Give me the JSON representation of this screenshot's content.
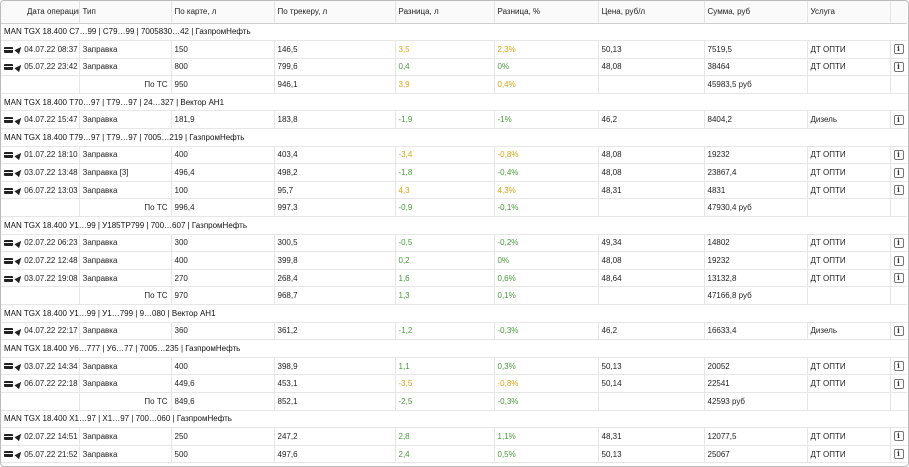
{
  "columns": [
    "Дата операции",
    "Тип",
    "По карте, л",
    "По трекеру, л",
    "Разница, л",
    "Разница, %",
    "Цена, руб/л",
    "Сумма, руб",
    "Услуга"
  ],
  "total_label": "По ТС",
  "rows": [
    {
      "kind": "group",
      "title": "MAN TGX 18.400 С7…99 | С79…99 | 7005830…42 | ГазпромНефть"
    },
    {
      "kind": "op",
      "date": "04.07.22 08:37",
      "type": "Заправка",
      "card": "150",
      "tracker": "146,5",
      "diff": "3,5",
      "diff_pct": "2,3%",
      "tone": "warn",
      "price": "50,13",
      "sum": "7519,5",
      "service": "ДТ ОПТИ",
      "info": true
    },
    {
      "kind": "op",
      "date": "05.07.22 23:42",
      "type": "Заправка",
      "card": "800",
      "tracker": "799,6",
      "diff": "0,4",
      "diff_pct": "0%",
      "tone": "pos",
      "price": "48,08",
      "sum": "38464",
      "service": "ДТ ОПТИ",
      "info": true
    },
    {
      "kind": "total",
      "card": "950",
      "tracker": "946,1",
      "diff": "3,9",
      "diff_pct": "0,4%",
      "tone": "warn",
      "sum": "45983,5 руб"
    },
    {
      "kind": "group",
      "title": "MAN TGX 18.400 Т70…97 | Т79…97 | 24…327 | Вектор АН1"
    },
    {
      "kind": "op",
      "date": "04.07.22 15:47",
      "type": "Заправка",
      "card": "181,9",
      "tracker": "183,8",
      "diff": "-1,9",
      "diff_pct": "-1%",
      "tone": "neg",
      "price": "46,2",
      "sum": "8404,2",
      "service": "Дизель",
      "info": true
    },
    {
      "kind": "group",
      "title": "MAN TGX 18.400 Т79…97 | Т79…97 | 7005…219 | ГазпромНефть"
    },
    {
      "kind": "op",
      "date": "01.07.22 18:10",
      "type": "Заправка",
      "card": "400",
      "tracker": "403,4",
      "diff": "-3,4",
      "diff_pct": "-0,8%",
      "tone": "warn",
      "price": "48,08",
      "sum": "19232",
      "service": "ДТ ОПТИ",
      "info": true
    },
    {
      "kind": "op",
      "date": "03.07.22 13:48",
      "type": "Заправка [3]",
      "card": "496,4",
      "tracker": "498,2",
      "diff": "-1,8",
      "diff_pct": "-0,4%",
      "tone": "neg",
      "price": "48,08",
      "sum": "23867,4",
      "service": "ДТ ОПТИ",
      "info": true
    },
    {
      "kind": "op",
      "date": "06.07.22 13:03",
      "type": "Заправка",
      "card": "100",
      "tracker": "95,7",
      "diff": "4,3",
      "diff_pct": "4,3%",
      "tone": "warn",
      "price": "48,31",
      "sum": "4831",
      "service": "ДТ ОПТИ",
      "info": true
    },
    {
      "kind": "total",
      "card": "996,4",
      "tracker": "997,3",
      "diff": "-0,9",
      "diff_pct": "-0,1%",
      "tone": "neg",
      "sum": "47930,4 руб"
    },
    {
      "kind": "group",
      "title": "MAN TGX 18.400 У1…99 | У185ТР799 | 700…607 | ГазпромНефть"
    },
    {
      "kind": "op",
      "date": "02.07.22 06:23",
      "type": "Заправка",
      "card": "300",
      "tracker": "300,5",
      "diff": "-0,5",
      "diff_pct": "-0,2%",
      "tone": "neg",
      "price": "49,34",
      "sum": "14802",
      "service": "ДТ ОПТИ",
      "info": true
    },
    {
      "kind": "op",
      "date": "02.07.22 12:48",
      "type": "Заправка",
      "card": "400",
      "tracker": "399,8",
      "diff": "0,2",
      "diff_pct": "0%",
      "tone": "pos",
      "price": "48,08",
      "sum": "19232",
      "service": "ДТ ОПТИ",
      "info": true
    },
    {
      "kind": "op",
      "date": "03.07.22 19:08",
      "type": "Заправка",
      "card": "270",
      "tracker": "268,4",
      "diff": "1,6",
      "diff_pct": "0,6%",
      "tone": "pos",
      "price": "48,64",
      "sum": "13132,8",
      "service": "ДТ ОПТИ",
      "info": true
    },
    {
      "kind": "total",
      "card": "970",
      "tracker": "968,7",
      "diff": "1,3",
      "diff_pct": "0,1%",
      "tone": "pos",
      "sum": "47166,8 руб"
    },
    {
      "kind": "group",
      "title": "MAN TGX 18.400 У1…99 | У1…799 | 9…080 | Вектор АН1"
    },
    {
      "kind": "op",
      "date": "04.07.22 22:17",
      "type": "Заправка",
      "card": "360",
      "tracker": "361,2",
      "diff": "-1,2",
      "diff_pct": "-0,3%",
      "tone": "neg",
      "price": "46,2",
      "sum": "16633,4",
      "service": "Дизель",
      "info": true
    },
    {
      "kind": "group",
      "title": "MAN TGX 18.400 У6…777 | У6…77 | 7005…235 | ГазпромНефть"
    },
    {
      "kind": "op",
      "date": "03.07.22 14:34",
      "type": "Заправка",
      "card": "400",
      "tracker": "398,9",
      "diff": "1,1",
      "diff_pct": "0,3%",
      "tone": "pos",
      "price": "50,13",
      "sum": "20052",
      "service": "ДТ ОПТИ",
      "info": true
    },
    {
      "kind": "op",
      "date": "06.07.22 22:18",
      "type": "Заправка",
      "card": "449,6",
      "tracker": "453,1",
      "diff": "-3,5",
      "diff_pct": "-0,8%",
      "tone": "warn",
      "price": "50,14",
      "sum": "22541",
      "service": "ДТ ОПТИ",
      "info": true
    },
    {
      "kind": "total",
      "card": "849,6",
      "tracker": "852,1",
      "diff": "-2,5",
      "diff_pct": "-0,3%",
      "tone": "neg",
      "sum": "42593 руб"
    },
    {
      "kind": "group",
      "title": "MAN TGX 18.400 Х1…97 | Х1…97 | 700…060 | ГазпромНефть"
    },
    {
      "kind": "op",
      "date": "02.07.22 14:51",
      "type": "Заправка",
      "card": "250",
      "tracker": "247,2",
      "diff": "2,8",
      "diff_pct": "1,1%",
      "tone": "pos",
      "price": "48,31",
      "sum": "12077,5",
      "service": "ДТ ОПТИ",
      "info": true
    },
    {
      "kind": "op",
      "date": "05.07.22 21:52",
      "type": "Заправка",
      "card": "500",
      "tracker": "497,6",
      "diff": "2,4",
      "diff_pct": "0,5%",
      "tone": "pos",
      "price": "50,13",
      "sum": "25067",
      "service": "ДТ ОПТИ",
      "info": true
    }
  ]
}
